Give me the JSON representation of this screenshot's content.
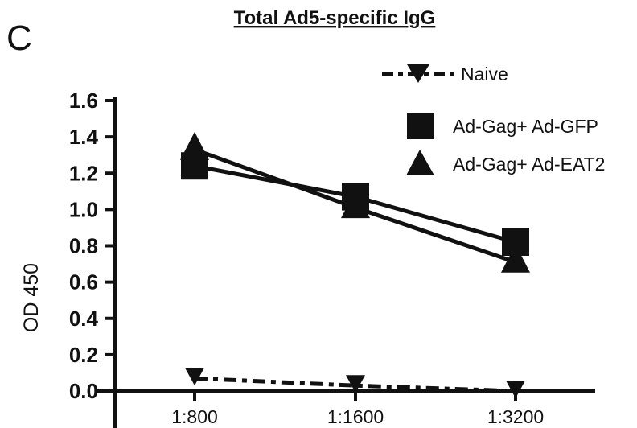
{
  "panel_letter": "C",
  "chart_data": {
    "type": "line",
    "title": "Total Ad5-specific IgG",
    "xlabel": "",
    "ylabel": "OD 450",
    "categories": [
      "1:800",
      "1:1600",
      "1:3200"
    ],
    "y_ticks": [
      "0.0",
      "0.2",
      "0.4",
      "0.6",
      "0.8",
      "1.0",
      "1.2",
      "1.4",
      "1.6"
    ],
    "ylim": [
      0,
      1.6
    ],
    "grid": false,
    "legend_position": "top-right",
    "series": [
      {
        "name": "Naive",
        "values": [
          0.07,
          0.03,
          0.0
        ],
        "marker": "triangle-down",
        "line": "dash-dot",
        "color": "#111111"
      },
      {
        "name": "Ad-Gag+ Ad-GFP",
        "values": [
          1.24,
          1.07,
          0.82
        ],
        "marker": "square",
        "line": "solid",
        "color": "#111111"
      },
      {
        "name": "Ad-Gag+ Ad-EAT2",
        "values": [
          1.33,
          1.01,
          0.71
        ],
        "marker": "triangle-up",
        "line": "solid",
        "color": "#111111"
      }
    ]
  }
}
